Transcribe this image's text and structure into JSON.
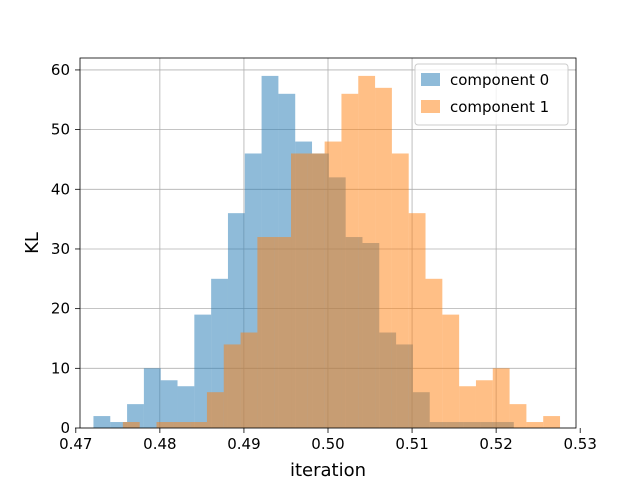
{
  "chart_data": {
    "type": "bar",
    "subtype": "overlaid-histogram",
    "title": "",
    "xlabel": "iteration",
    "ylabel": "KL",
    "xlim": [
      0.4705,
      0.5295
    ],
    "ylim": [
      0,
      62
    ],
    "xticks": [
      0.47,
      0.48,
      0.49,
      0.5,
      0.51,
      0.52,
      0.53
    ],
    "xtick_labels": [
      "0.47",
      "0.48",
      "0.49",
      "0.50",
      "0.51",
      "0.52",
      "0.53"
    ],
    "yticks": [
      0,
      10,
      20,
      30,
      40,
      50,
      60
    ],
    "ytick_labels": [
      "0",
      "10",
      "20",
      "30",
      "40",
      "50",
      "60"
    ],
    "grid": true,
    "legend_position": "top-right",
    "series": [
      {
        "name": "component 0",
        "color": "#1f77b4",
        "alpha": 0.5,
        "bin_edges": [
          0.4721,
          0.4741,
          0.4761,
          0.4781,
          0.4801,
          0.4821,
          0.4841,
          0.4861,
          0.4881,
          0.4901,
          0.4921,
          0.4941,
          0.4961,
          0.4981,
          0.5001,
          0.5021,
          0.5041,
          0.5061,
          0.5081,
          0.5101,
          0.5121,
          0.5141,
          0.5161,
          0.5181,
          0.5201,
          0.5221,
          0.5241
        ],
        "counts": [
          2,
          1,
          4,
          10,
          8,
          7,
          19,
          25,
          36,
          46,
          59,
          56,
          48,
          46,
          42,
          32,
          31,
          16,
          14,
          6,
          1,
          1,
          1,
          1,
          1,
          0
        ]
      },
      {
        "name": "component 1",
        "color": "#ff7f0e",
        "alpha": 0.5,
        "bin_edges": [
          0.4756,
          0.4776,
          0.4796,
          0.4816,
          0.4836,
          0.4856,
          0.4876,
          0.4896,
          0.4916,
          0.4936,
          0.4956,
          0.4976,
          0.4996,
          0.5016,
          0.5036,
          0.5056,
          0.5076,
          0.5096,
          0.5116,
          0.5136,
          0.5156,
          0.5176,
          0.5196,
          0.5216,
          0.5236,
          0.5256,
          0.5276
        ],
        "counts": [
          1,
          0,
          1,
          1,
          1,
          6,
          14,
          16,
          32,
          32,
          46,
          46,
          48,
          56,
          59,
          57,
          46,
          36,
          25,
          19,
          7,
          8,
          10,
          4,
          1,
          2
        ]
      }
    ]
  }
}
